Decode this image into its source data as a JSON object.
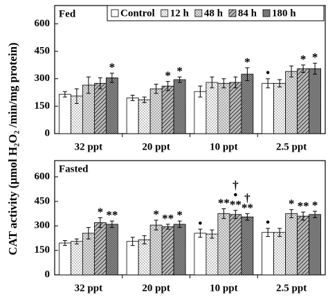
{
  "chart_data": [
    {
      "type": "bar",
      "panel_label": "Fed",
      "ylabel": "CAT activity (μmol H₂O₂ /min/mg protein)",
      "categories": [
        "32 ppt",
        "20 ppt",
        "10 ppt",
        "2.5 ppt"
      ],
      "ylim": [
        0,
        700
      ],
      "yticks": [
        0,
        150,
        300,
        450,
        600
      ],
      "legend": "top-right",
      "series": [
        {
          "name": "Control",
          "pattern": "none",
          "values": [
            215,
            195,
            230,
            275
          ],
          "errors": [
            15,
            15,
            30,
            25
          ],
          "annotations": [
            null,
            null,
            null,
            [
              "•"
            ]
          ]
        },
        {
          "name": "12 h",
          "pattern": "dots",
          "values": [
            205,
            185,
            280,
            275
          ],
          "errors": [
            40,
            15,
            30,
            20
          ],
          "annotations": [
            null,
            null,
            null,
            null
          ]
        },
        {
          "name": "48 h",
          "pattern": "checks",
          "values": [
            265,
            245,
            275,
            340
          ],
          "errors": [
            45,
            25,
            25,
            30
          ],
          "annotations": [
            null,
            null,
            null,
            null
          ]
        },
        {
          "name": "84 h",
          "pattern": "hatch",
          "values": [
            275,
            260,
            280,
            355
          ],
          "errors": [
            30,
            25,
            30,
            20
          ],
          "annotations": [
            null,
            [
              "*"
            ],
            null,
            [
              "*"
            ]
          ]
        },
        {
          "name": "180 h",
          "pattern": "crosshatch",
          "values": [
            305,
            295,
            325,
            355
          ],
          "errors": [
            25,
            15,
            35,
            30
          ],
          "annotations": [
            [
              "*"
            ],
            [
              "*"
            ],
            [
              "*"
            ],
            [
              "*"
            ]
          ]
        }
      ]
    },
    {
      "type": "bar",
      "panel_label": "Fasted",
      "categories": [
        "32 ppt",
        "20 ppt",
        "10 ppt",
        "2.5 ppt"
      ],
      "ylim": [
        0,
        700
      ],
      "yticks": [
        0,
        150,
        300,
        450,
        600
      ],
      "series": [
        {
          "pattern": "none",
          "values": [
            195,
            205,
            255,
            260
          ],
          "errors": [
            15,
            25,
            25,
            25
          ],
          "annotations": [
            null,
            null,
            [
              "•"
            ],
            [
              "•"
            ]
          ]
        },
        {
          "pattern": "dots",
          "values": [
            205,
            215,
            250,
            260
          ],
          "errors": [
            15,
            25,
            25,
            25
          ],
          "annotations": [
            null,
            null,
            null,
            null
          ]
        },
        {
          "pattern": "checks",
          "values": [
            255,
            305,
            375,
            375
          ],
          "errors": [
            35,
            30,
            30,
            25
          ],
          "annotations": [
            null,
            [
              "*"
            ],
            [
              "**"
            ],
            [
              "*"
            ]
          ]
        },
        {
          "pattern": "hatch",
          "values": [
            320,
            295,
            370,
            360
          ],
          "errors": [
            30,
            15,
            25,
            25
          ],
          "annotations": [
            [
              "*"
            ],
            [
              "**"
            ],
            [
              "†",
              "•",
              "**"
            ],
            [
              "**"
            ]
          ]
        },
        {
          "pattern": "crosshatch",
          "values": [
            310,
            310,
            355,
            370
          ],
          "errors": [
            20,
            20,
            20,
            20
          ],
          "annotations": [
            [
              "**"
            ],
            [
              "*"
            ],
            [
              "†",
              "**"
            ],
            [
              "*"
            ]
          ]
        }
      ]
    }
  ]
}
